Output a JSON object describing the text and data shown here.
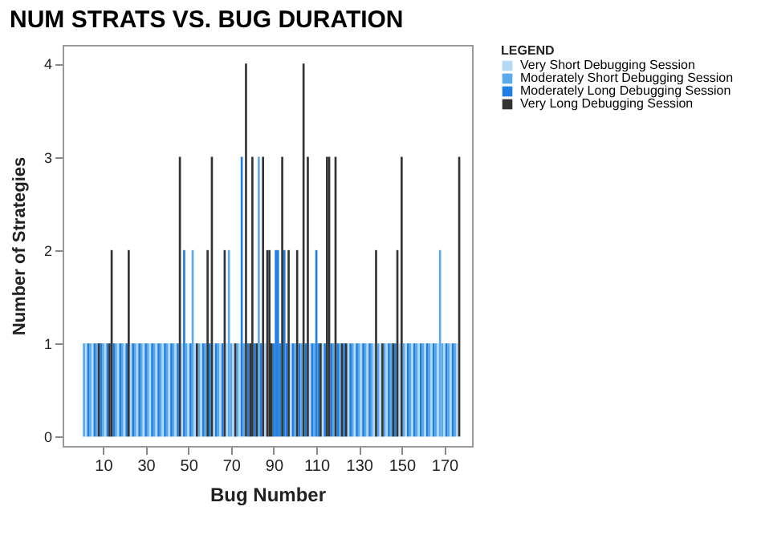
{
  "chart_data": {
    "type": "bar",
    "title": "NUM STRATS VS. BUG DURATION",
    "xlabel": "Bug Number",
    "ylabel": "Number of Strategies",
    "legend_title": "LEGEND",
    "legend": "right",
    "grid": false,
    "xlim": [
      -9,
      183
    ],
    "xticks": [
      10,
      30,
      50,
      70,
      90,
      110,
      130,
      150,
      170
    ],
    "ylim": [
      -0.1,
      4.2
    ],
    "yticks": [
      0,
      1,
      2,
      3,
      4
    ],
    "series": [
      {
        "name": "Very Short Debugging Session",
        "color": "#b3d9f7",
        "x": [
          2,
          5,
          11,
          17,
          20,
          23,
          26,
          29,
          32,
          35,
          38,
          41,
          44,
          47,
          50,
          53,
          56,
          62,
          65,
          68,
          71,
          74,
          86,
          98,
          107,
          113,
          125,
          128,
          131,
          134,
          137,
          140,
          143,
          149,
          152,
          155,
          158,
          161,
          164,
          167,
          170,
          173,
          176
        ],
        "values": [
          1,
          1,
          1,
          1,
          1,
          1,
          1,
          1,
          1,
          1,
          1,
          1,
          1,
          1,
          1,
          1,
          1,
          1,
          1,
          1,
          1,
          1,
          1,
          1,
          1,
          1,
          1,
          1,
          1,
          1,
          1,
          1,
          1,
          1,
          1,
          1,
          1,
          1,
          1,
          1,
          1,
          1,
          1
        ]
      },
      {
        "name": "Moderately Short Debugging Session",
        "color": "#5aa9ea",
        "x": [
          1,
          4,
          7,
          10,
          16,
          19,
          25,
          28,
          31,
          34,
          37,
          40,
          43,
          49,
          52,
          55,
          58,
          64,
          69,
          70,
          73,
          76,
          83,
          100,
          103,
          109,
          118,
          121,
          127,
          130,
          133,
          136,
          139,
          142,
          145,
          151,
          154,
          157,
          160,
          163,
          166,
          168,
          169,
          172,
          175
        ],
        "values": [
          1,
          1,
          1,
          1,
          1,
          1,
          1,
          1,
          1,
          1,
          1,
          1,
          1,
          1,
          2,
          1,
          1,
          1,
          2,
          1,
          1,
          1,
          3,
          1,
          1,
          1,
          1,
          1,
          1,
          1,
          1,
          1,
          1,
          1,
          1,
          1,
          1,
          1,
          1,
          1,
          1,
          2,
          1,
          1,
          1
        ]
      },
      {
        "name": "Moderately Long Debugging Session",
        "color": "#1e7fe0",
        "x": [
          3,
          6,
          9,
          12,
          15,
          18,
          21,
          24,
          27,
          30,
          33,
          36,
          39,
          42,
          45,
          48,
          51,
          57,
          60,
          63,
          66,
          75,
          78,
          81,
          84,
          90,
          91,
          92,
          93,
          95,
          96,
          99,
          102,
          105,
          108,
          110,
          111,
          114,
          117,
          120,
          123,
          126,
          129,
          132,
          135,
          144,
          147,
          153,
          156,
          159,
          162,
          165,
          171,
          174
        ],
        "values": [
          1,
          1,
          1,
          1,
          1,
          1,
          1,
          1,
          1,
          1,
          1,
          1,
          1,
          1,
          1,
          2,
          1,
          1,
          1,
          1,
          1,
          3,
          1,
          1,
          1,
          1,
          2,
          2,
          1,
          2,
          1,
          1,
          1,
          1,
          1,
          2,
          1,
          1,
          1,
          1,
          1,
          1,
          1,
          1,
          1,
          1,
          1,
          1,
          1,
          1,
          1,
          1,
          1,
          1
        ]
      },
      {
        "name": "Very Long Debugging Session",
        "color": "#333333",
        "x": [
          8,
          13,
          14,
          22,
          46,
          54,
          59,
          61,
          67,
          72,
          77,
          79,
          80,
          82,
          85,
          87,
          88,
          89,
          94,
          97,
          101,
          104,
          106,
          112,
          115,
          116,
          119,
          122,
          124,
          138,
          141,
          146,
          148,
          150,
          177
        ],
        "values": [
          1,
          1,
          2,
          2,
          3,
          1,
          2,
          3,
          2,
          1,
          4,
          1,
          3,
          1,
          3,
          2,
          2,
          1,
          3,
          2,
          2,
          4,
          3,
          1,
          3,
          3,
          3,
          1,
          1,
          2,
          1,
          1,
          2,
          3,
          3
        ]
      }
    ]
  }
}
